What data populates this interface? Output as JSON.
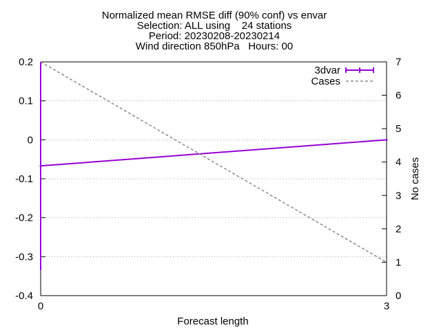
{
  "chart_data": {
    "type": "line",
    "title_lines": [
      "Normalized mean RMSE diff (90% conf) vs envar",
      "Selection: ALL using    24 stations",
      "Period: 20230208-20230214",
      "Wind direction 850hPa   Hours: 00"
    ],
    "xlabel": "Forecast length",
    "ylabel": "",
    "y2label": "No cases",
    "xlim": [
      0,
      3
    ],
    "ylim": [
      -0.4,
      0.2
    ],
    "y2lim": [
      0,
      7
    ],
    "x_ticks": [
      "0",
      "3"
    ],
    "y_ticks": [
      "-0.4",
      "-0.3",
      "-0.2",
      "-0.1",
      "0",
      "0.1",
      "0.2"
    ],
    "y2_ticks": [
      "0",
      "1",
      "2",
      "3",
      "4",
      "5",
      "6",
      "7"
    ],
    "grid": "horizontal dotted",
    "legend_position": "top-right",
    "series": [
      {
        "name": "3dvar",
        "axis": "y",
        "color": "#9400d3",
        "style": "solid with errorbars",
        "x": [
          0,
          3
        ],
        "y": [
          -0.067,
          0.0
        ],
        "err_low": [
          -0.335,
          0.0
        ],
        "err_high": [
          0.2,
          0.0
        ]
      },
      {
        "name": "Cases",
        "axis": "y2",
        "color": "#888888",
        "style": "dashed",
        "x": [
          0,
          3
        ],
        "y": [
          7,
          1
        ]
      }
    ]
  }
}
